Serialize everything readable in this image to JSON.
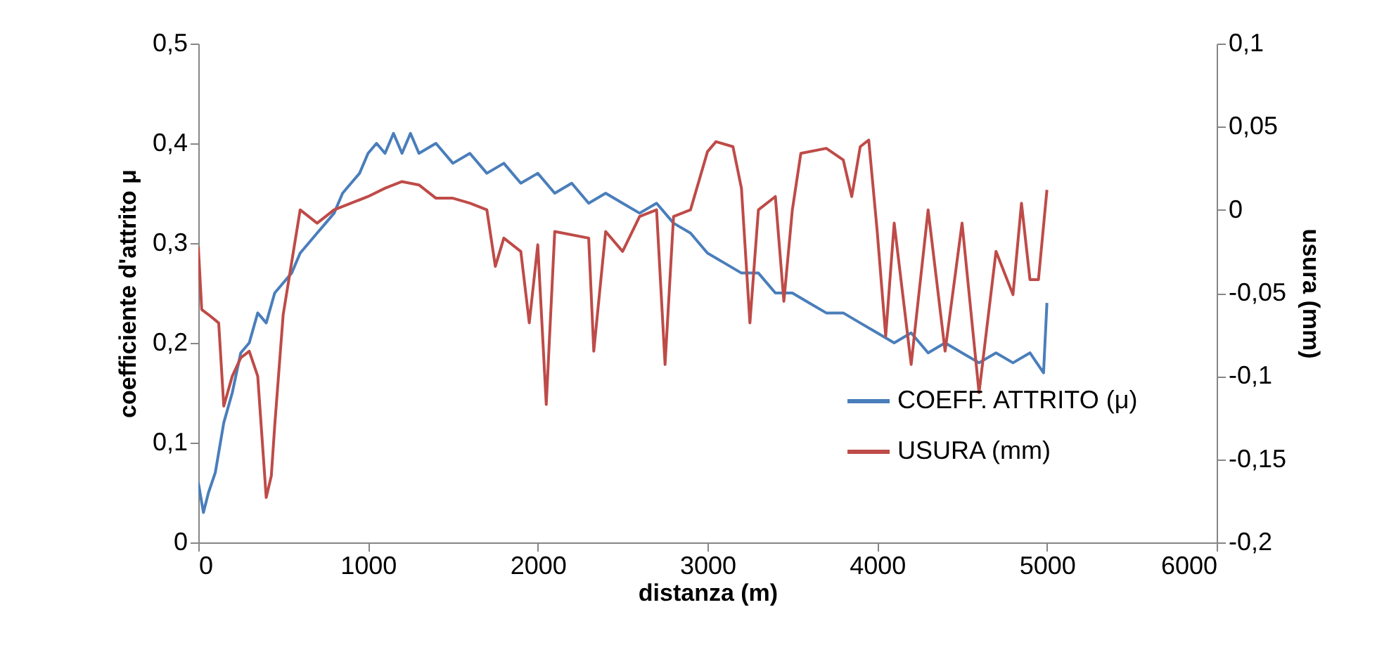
{
  "chart_data": {
    "type": "line",
    "xlabel": "distanza (m)",
    "ylabel": "coefficiente d'attrito μ",
    "y2label": "usura (mm)",
    "xlim": [
      0,
      6000
    ],
    "xticks": [
      0,
      1000,
      2000,
      3000,
      4000,
      5000,
      6000
    ],
    "ylim": [
      0,
      0.5
    ],
    "yticks": [
      {
        "value": 0,
        "label": "0"
      },
      {
        "value": 0.1,
        "label": "0,1"
      },
      {
        "value": 0.2,
        "label": "0,2"
      },
      {
        "value": 0.3,
        "label": "0,3"
      },
      {
        "value": 0.4,
        "label": "0,4"
      },
      {
        "value": 0.5,
        "label": "0,5"
      }
    ],
    "y2lim": [
      -0.2,
      0.1
    ],
    "y2ticks": [
      {
        "value": -0.2,
        "label": "-0,2"
      },
      {
        "value": -0.15,
        "label": "-0,15"
      },
      {
        "value": -0.1,
        "label": "-0,1"
      },
      {
        "value": -0.05,
        "label": "-0,05"
      },
      {
        "value": 0,
        "label": "0"
      },
      {
        "value": 0.05,
        "label": "0,05"
      },
      {
        "value": 0.1,
        "label": "0,1"
      }
    ],
    "legend": "bottom right",
    "line_style": "solid",
    "series": [
      {
        "name": "COEFF. ATTRITO (μ)",
        "color": "#4a7ebb",
        "x": [
          0,
          30,
          60,
          100,
          150,
          200,
          250,
          300,
          350,
          400,
          450,
          500,
          550,
          600,
          650,
          700,
          750,
          800,
          850,
          900,
          950,
          1000,
          1050,
          1100,
          1150,
          1200,
          1250,
          1300,
          1400,
          1500,
          1600,
          1700,
          1800,
          1900,
          2000,
          2100,
          2200,
          2300,
          2400,
          2500,
          2600,
          2700,
          2800,
          2900,
          3000,
          3100,
          3200,
          3300,
          3400,
          3500,
          3600,
          3700,
          3800,
          3900,
          4000,
          4100,
          4200,
          4300,
          4400,
          4500,
          4600,
          4700,
          4800,
          4900,
          4980,
          5000
        ],
        "values": [
          0.06,
          0.03,
          0.05,
          0.07,
          0.12,
          0.15,
          0.19,
          0.2,
          0.23,
          0.22,
          0.25,
          0.26,
          0.27,
          0.29,
          0.3,
          0.31,
          0.32,
          0.33,
          0.35,
          0.36,
          0.37,
          0.39,
          0.4,
          0.39,
          0.41,
          0.39,
          0.41,
          0.39,
          0.4,
          0.38,
          0.39,
          0.37,
          0.38,
          0.36,
          0.37,
          0.35,
          0.36,
          0.34,
          0.35,
          0.34,
          0.33,
          0.34,
          0.32,
          0.31,
          0.29,
          0.28,
          0.27,
          0.27,
          0.25,
          0.25,
          0.24,
          0.23,
          0.23,
          0.22,
          0.21,
          0.2,
          0.21,
          0.19,
          0.2,
          0.19,
          0.18,
          0.19,
          0.18,
          0.19,
          0.17,
          0.24
        ]
      },
      {
        "name": "USURA  (mm)",
        "color": "#be4b48",
        "axis": "y2",
        "x": [
          0,
          20,
          60,
          120,
          150,
          200,
          250,
          300,
          350,
          400,
          430,
          450,
          500,
          600,
          700,
          800,
          900,
          1000,
          1100,
          1200,
          1300,
          1400,
          1500,
          1600,
          1700,
          1750,
          1800,
          1900,
          1950,
          2000,
          2050,
          2100,
          2300,
          2330,
          2400,
          2500,
          2600,
          2700,
          2750,
          2800,
          2900,
          3000,
          3050,
          3150,
          3200,
          3250,
          3300,
          3400,
          3450,
          3500,
          3550,
          3700,
          3800,
          3850,
          3900,
          3950,
          4000,
          4050,
          4100,
          4200,
          4300,
          4400,
          4500,
          4600,
          4700,
          4800,
          4850,
          4900,
          4950,
          5000
        ],
        "values": [
          -0.022,
          -0.06,
          -0.063,
          -0.068,
          -0.118,
          -0.1,
          -0.089,
          -0.085,
          -0.1,
          -0.173,
          -0.16,
          -0.13,
          -0.063,
          0,
          -0.008,
          0,
          0.004,
          0.008,
          0.013,
          0.017,
          0.015,
          0.007,
          0.007,
          0.004,
          0,
          -0.034,
          -0.017,
          -0.025,
          -0.068,
          -0.021,
          -0.117,
          -0.013,
          -0.017,
          -0.085,
          -0.013,
          -0.025,
          -0.004,
          0,
          -0.093,
          -0.004,
          0,
          0.035,
          0.041,
          0.038,
          0.013,
          -0.068,
          0,
          0.008,
          -0.055,
          0,
          0.034,
          0.037,
          0.03,
          0.008,
          0.038,
          0.042,
          -0.013,
          -0.076,
          -0.008,
          -0.093,
          0,
          -0.085,
          -0.008,
          -0.11,
          -0.025,
          -0.051,
          0.004,
          -0.042,
          -0.042,
          0.012
        ]
      }
    ]
  }
}
